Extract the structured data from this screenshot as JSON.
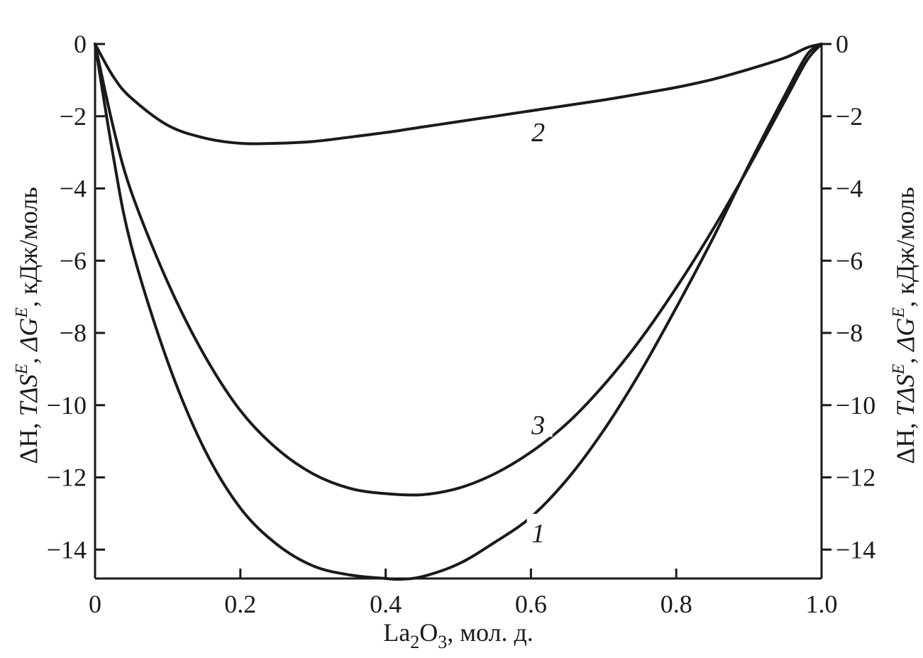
{
  "chart_data": {
    "type": "line",
    "xlabel": {
      "base": "La",
      "sub1": "2",
      "mid": "O",
      "sub2": "3",
      "rest": ", мол. д."
    },
    "ylabel": {
      "p1": "ΔH, ",
      "p2": "TΔS",
      "sup1": "E",
      "p3": ", ΔG",
      "sup2": "E",
      "p4": ", кДж/моль"
    },
    "xlim": [
      0,
      1.0
    ],
    "ylim": [
      -15,
      0
    ],
    "x_ticks": [
      0,
      0.2,
      0.4,
      0.6,
      0.8,
      1.0
    ],
    "x_tick_labels": [
      "0",
      "0.2",
      "0.4",
      "0.6",
      "0.8",
      "1.0"
    ],
    "y_ticks": [
      0,
      -2,
      -4,
      -6,
      -8,
      -10,
      -12,
      -14
    ],
    "y_tick_labels": [
      "0",
      "−2",
      "−4",
      "−6",
      "−8",
      "−10",
      "−12",
      "−14"
    ],
    "right_axis": true,
    "grid": false,
    "series": [
      {
        "name": "1",
        "label_at": {
          "x": 0.61,
          "y": -13.6
        },
        "x": [
          0,
          0.025,
          0.05,
          0.1,
          0.15,
          0.2,
          0.25,
          0.3,
          0.35,
          0.4,
          0.42,
          0.45,
          0.5,
          0.55,
          0.6,
          0.65,
          0.7,
          0.75,
          0.8,
          0.85,
          0.9,
          0.95,
          0.98,
          1.0
        ],
        "y": [
          0,
          -3.1,
          -5.6,
          -8.8,
          -11.2,
          -12.85,
          -13.85,
          -14.45,
          -14.7,
          -14.8,
          -14.82,
          -14.75,
          -14.4,
          -13.8,
          -13.1,
          -12.05,
          -10.7,
          -9.1,
          -7.3,
          -5.4,
          -3.35,
          -1.4,
          -0.3,
          0
        ]
      },
      {
        "name": "2",
        "label_at": {
          "x": 0.61,
          "y": -2.5
        },
        "x": [
          0,
          0.025,
          0.05,
          0.1,
          0.15,
          0.2,
          0.25,
          0.3,
          0.35,
          0.4,
          0.45,
          0.5,
          0.55,
          0.6,
          0.65,
          0.7,
          0.75,
          0.8,
          0.85,
          0.9,
          0.95,
          0.98,
          1.0
        ],
        "y": [
          0,
          -0.9,
          -1.5,
          -2.25,
          -2.6,
          -2.75,
          -2.75,
          -2.7,
          -2.58,
          -2.45,
          -2.3,
          -2.15,
          -2.0,
          -1.85,
          -1.7,
          -1.55,
          -1.38,
          -1.2,
          -0.98,
          -0.7,
          -0.38,
          -0.1,
          0
        ]
      },
      {
        "name": "3",
        "label_at": {
          "x": 0.61,
          "y": -10.6
        },
        "x": [
          0,
          0.025,
          0.05,
          0.1,
          0.15,
          0.2,
          0.25,
          0.3,
          0.35,
          0.4,
          0.45,
          0.5,
          0.55,
          0.6,
          0.65,
          0.7,
          0.75,
          0.8,
          0.85,
          0.9,
          0.95,
          0.98,
          1.0
        ],
        "y": [
          0,
          -2.3,
          -4.1,
          -6.6,
          -8.6,
          -10.15,
          -11.2,
          -11.9,
          -12.3,
          -12.45,
          -12.48,
          -12.3,
          -11.9,
          -11.3,
          -10.5,
          -9.45,
          -8.2,
          -6.75,
          -5.15,
          -3.4,
          -1.55,
          -0.45,
          0
        ]
      }
    ]
  }
}
